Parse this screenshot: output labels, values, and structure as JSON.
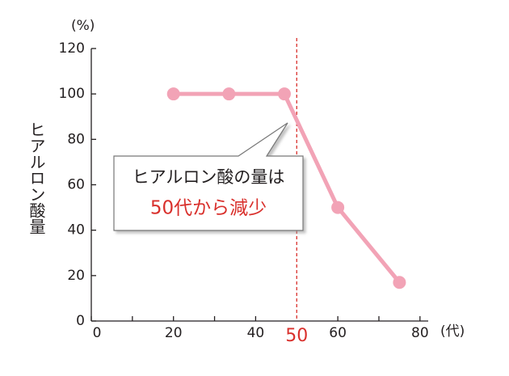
{
  "chart_data": {
    "type": "line",
    "y_label": "ヒアルロン酸量",
    "y_unit": "(%)",
    "x_unit": "(代)",
    "x": [
      20,
      33.5,
      47,
      60,
      75
    ],
    "series": [
      {
        "color": "#f2a3b6",
        "values": [
          100,
          100,
          100,
          50,
          17
        ]
      }
    ],
    "xlim": [
      0,
      82
    ],
    "ylim": [
      0,
      120
    ],
    "xticks": [
      0,
      20,
      40,
      60,
      80
    ],
    "minor_xticks": [
      10,
      30,
      70
    ],
    "yticks": [
      0,
      20,
      40,
      60,
      80,
      100,
      120
    ],
    "vline": {
      "value": 50,
      "color": "#d9302c"
    },
    "annotation": {
      "text": "ヒアルロン酸の量は",
      "highlight": "50代から減少",
      "highlight_color": "#d9302c"
    }
  }
}
